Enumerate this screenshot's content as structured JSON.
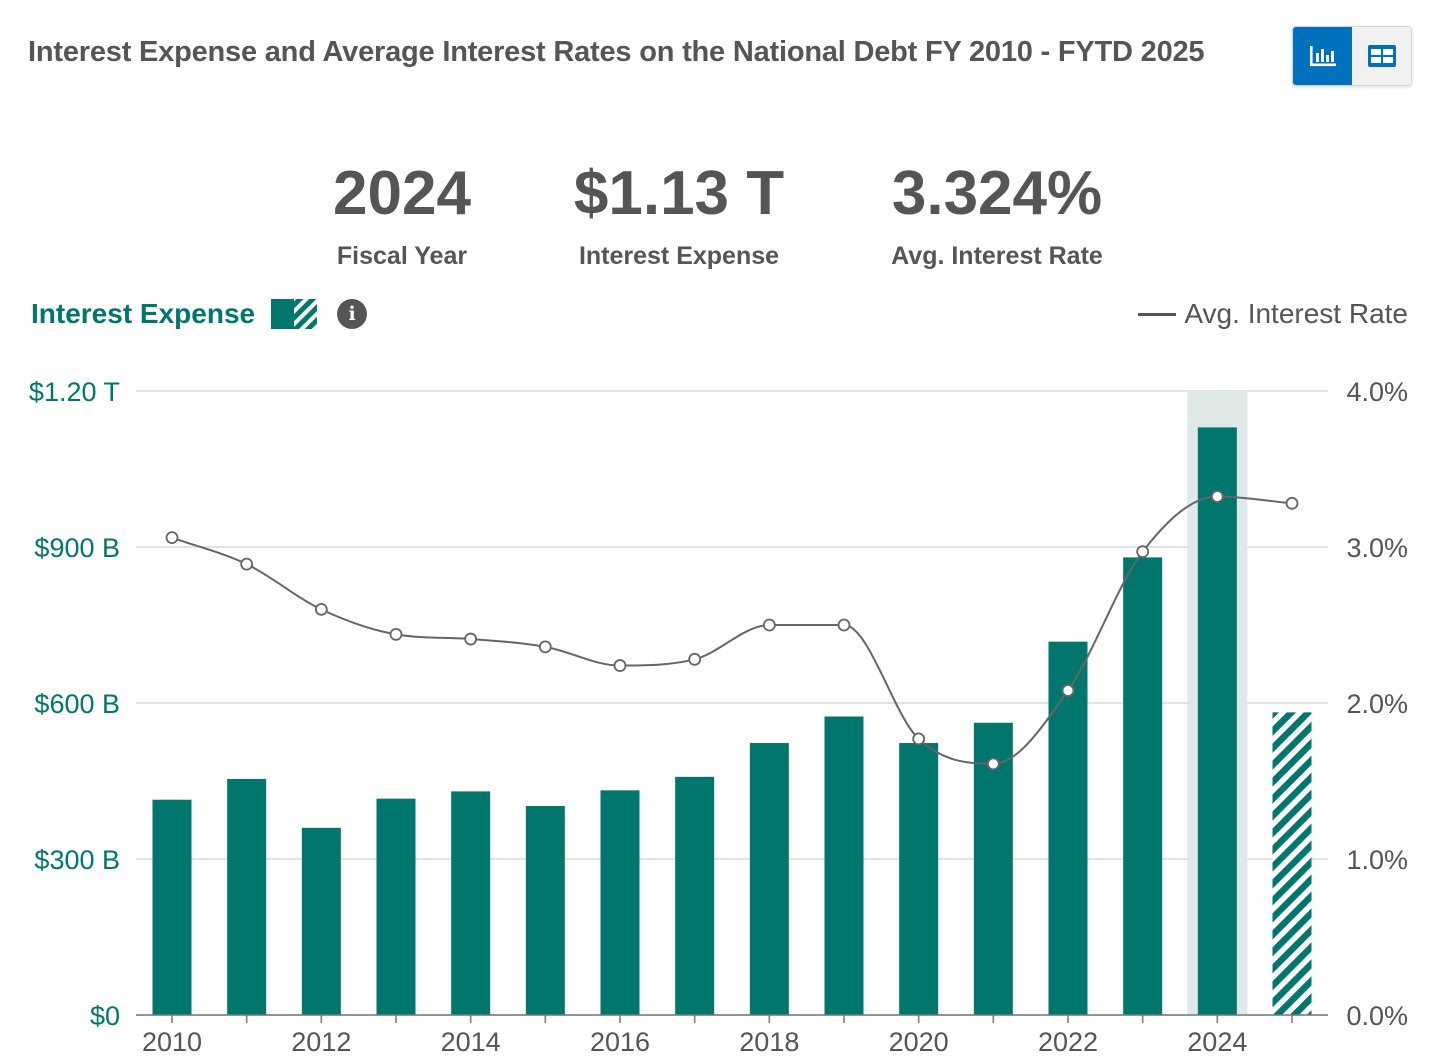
{
  "title": "Interest Expense and Average Interest Rates on the National Debt FY 2010 - FYTD 2025",
  "view_toggle": {
    "chart_icon": "bar-chart-icon",
    "table_icon": "table-icon"
  },
  "stats": [
    {
      "value": "2024",
      "label": "Fiscal Year"
    },
    {
      "value": "$1.13 T",
      "label": "Interest Expense"
    },
    {
      "value": "3.324%",
      "label": "Avg. Interest Rate"
    }
  ],
  "legend": {
    "bars_label": "Interest Expense",
    "line_label": "Avg. Interest Rate",
    "info_icon": "info-icon"
  },
  "colors": {
    "bar": "#00766c",
    "highlight": "#dfeae8",
    "line": "#666666",
    "grid": "#d9d9d9"
  },
  "chart_data": {
    "type": "bar",
    "x": [
      2010,
      2011,
      2012,
      2013,
      2014,
      2015,
      2016,
      2017,
      2018,
      2019,
      2020,
      2021,
      2022,
      2023,
      2024,
      2025
    ],
    "x_tick_labels": [
      "2010",
      "2012",
      "2014",
      "2016",
      "2018",
      "2020",
      "2022",
      "2024"
    ],
    "series": [
      {
        "name": "Interest Expense",
        "type": "bar",
        "axis": "left",
        "values": [
          414,
          454,
          360,
          416,
          430,
          402,
          432,
          458,
          523,
          574,
          523,
          562,
          718,
          880,
          1130,
          582
        ],
        "partial_year": 2025
      },
      {
        "name": "Avg. Interest Rate",
        "type": "line",
        "axis": "right",
        "values": [
          3.06,
          2.89,
          2.6,
          2.44,
          2.41,
          2.36,
          2.24,
          2.28,
          2.5,
          2.5,
          1.77,
          1.61,
          2.08,
          2.97,
          3.324,
          3.28
        ]
      }
    ],
    "highlight_year": 2024,
    "y_left": {
      "ticks": [
        0,
        300,
        600,
        900,
        1200
      ],
      "tick_labels": [
        "$0",
        "$300 B",
        "$600 B",
        "$900 B",
        "$1.20 T"
      ],
      "range": [
        0,
        1200
      ],
      "unit": "billions USD"
    },
    "y_right": {
      "ticks": [
        0,
        1,
        2,
        3,
        4
      ],
      "tick_labels": [
        "0.0%",
        "1.0%",
        "2.0%",
        "3.0%",
        "4.0%"
      ],
      "range": [
        0,
        4
      ],
      "unit": "percent"
    },
    "grid": true,
    "legend_placement": "top"
  }
}
